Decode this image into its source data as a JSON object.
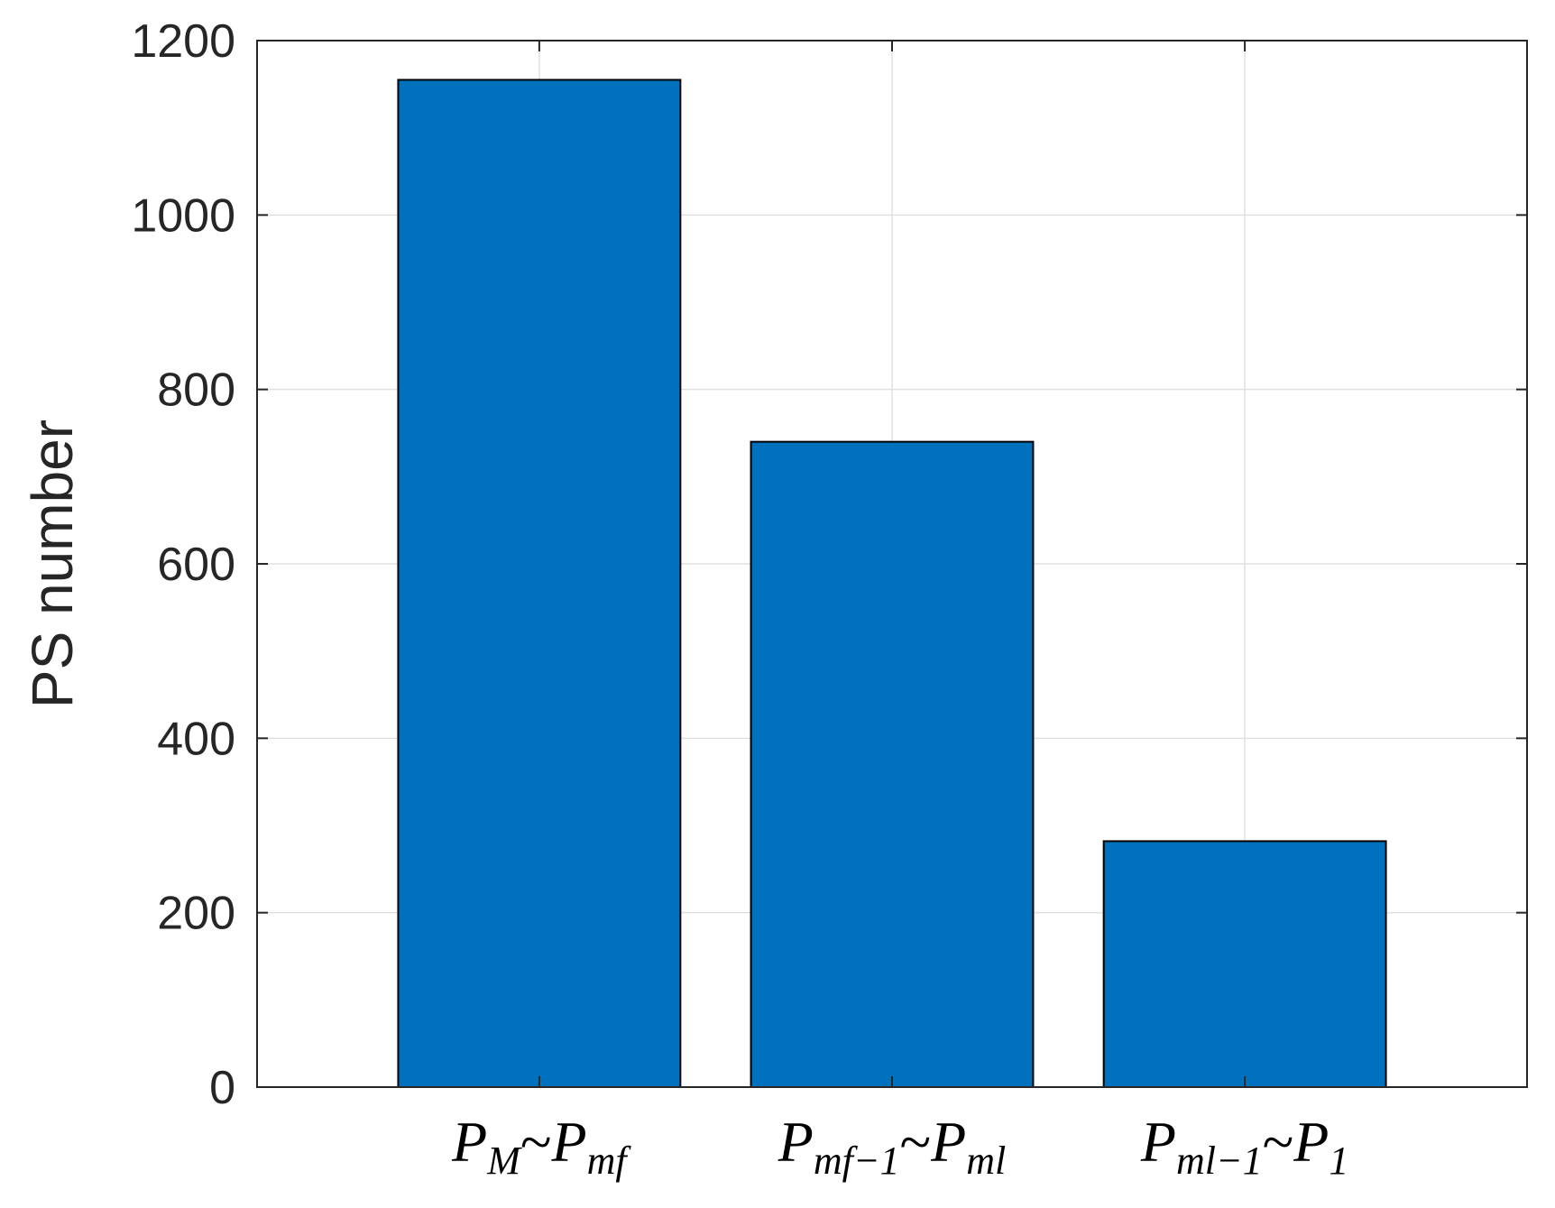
{
  "chart_data": {
    "type": "bar",
    "categories": [
      {
        "main": "P",
        "sub": "M",
        "sep": "~",
        "main2": "P",
        "sub2": "mf"
      },
      {
        "main": "P",
        "sub": "mf−1",
        "sep": "~",
        "main2": "P",
        "sub2": "ml"
      },
      {
        "main": "P",
        "sub": "ml−1",
        "sep": "~",
        "main2": "P",
        "sub2": "1"
      }
    ],
    "values": [
      1155,
      740,
      282
    ],
    "title": "",
    "xlabel": "",
    "ylabel": "PS number",
    "ylim": [
      0,
      1200
    ],
    "xlim": [
      0.2,
      3.8
    ],
    "yticks": [
      0,
      200,
      400,
      600,
      800,
      1000,
      1200
    ],
    "grid": true,
    "legend": "none",
    "colors": {
      "bar_fill": "#0072BD",
      "bar_edge": "#000000",
      "axis": "#262626",
      "grid": "#e0e0e0"
    }
  }
}
